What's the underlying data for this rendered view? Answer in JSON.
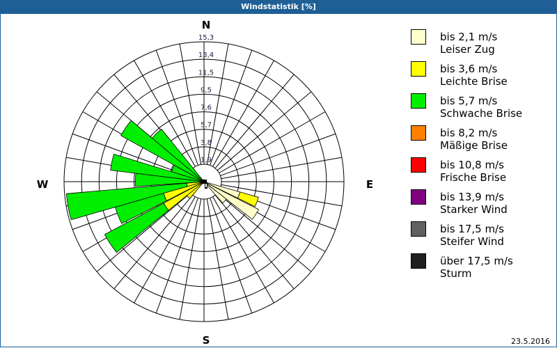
{
  "header": {
    "title": "Windstatistik [%]"
  },
  "footer": {
    "date": "23.5.2016"
  },
  "compass": {
    "north": "N",
    "east": "E",
    "south": "S",
    "west": "W"
  },
  "legend": [
    {
      "speed": "bis 2,1 m/s",
      "name": "Leiser Zug",
      "color": "#ffffcc"
    },
    {
      "speed": "bis 3,6 m/s",
      "name": "Leichte Brise",
      "color": "#ffff00"
    },
    {
      "speed": "bis 5,7 m/s",
      "name": "Schwache Brise",
      "color": "#00ee00"
    },
    {
      "speed": "bis 8,2 m/s",
      "name": "Mäßige Brise",
      "color": "#ff8000"
    },
    {
      "speed": "bis 10,8 m/s",
      "name": "Frische Brise",
      "color": "#ff0000"
    },
    {
      "speed": "bis 13,9 m/s",
      "name": "Starker Wind",
      "color": "#800080"
    },
    {
      "speed": "bis 17,5 m/s",
      "name": "Steifer Wind",
      "color": "#606060"
    },
    {
      "speed": "über 17,5 m/s",
      "name": "Sturm",
      "color": "#202020"
    }
  ],
  "chart_data": {
    "type": "polar-bar (wind rose)",
    "title": "Windstatistik [%]",
    "date": "23.5.2016",
    "radial_ticks": [
      "1,9",
      "3,8",
      "5,7",
      "7,6",
      "9,5",
      "11,5",
      "13,4",
      "15,3"
    ],
    "radial_max": 15.3,
    "directions_count": 36,
    "sector_width_deg": 10,
    "series_names": [
      "bis 2,1 m/s",
      "bis 3,6 m/s",
      "bis 5,7 m/s"
    ],
    "sectors": [
      {
        "from": 106,
        "to": 116,
        "stack": [
          {
            "cls": 0,
            "to": 4.1
          },
          {
            "cls": 1,
            "to": 6.2
          }
        ]
      },
      {
        "from": 117,
        "to": 128,
        "stack": [
          {
            "cls": 0,
            "to": 6.7
          }
        ]
      },
      {
        "from": 128,
        "to": 139,
        "stack": [
          {
            "cls": 0,
            "to": 3.1
          }
        ]
      },
      {
        "from": 220,
        "to": 231,
        "stack": [
          {
            "cls": 1,
            "to": 2.4
          }
        ]
      },
      {
        "from": 231,
        "to": 242,
        "stack": [
          {
            "cls": 1,
            "to": 5.0
          },
          {
            "cls": 2,
            "to": 12.3
          }
        ]
      },
      {
        "from": 243,
        "to": 254,
        "stack": [
          {
            "cls": 1,
            "to": 4.6
          },
          {
            "cls": 2,
            "to": 10.1
          }
        ]
      },
      {
        "from": 254,
        "to": 265,
        "stack": [
          {
            "cls": 1,
            "to": 1.9
          },
          {
            "cls": 2,
            "to": 15.1
          }
        ]
      },
      {
        "from": 266,
        "to": 277,
        "stack": [
          {
            "cls": 2,
            "to": 7.5
          }
        ]
      },
      {
        "from": 277,
        "to": 287,
        "stack": [
          {
            "cls": 2,
            "to": 10.3
          }
        ]
      },
      {
        "from": 287,
        "to": 299,
        "stack": [
          {
            "cls": 2,
            "to": 3.7
          }
        ]
      },
      {
        "from": 299,
        "to": 310,
        "stack": [
          {
            "cls": 2,
            "to": 10.4
          }
        ]
      },
      {
        "from": 310,
        "to": 321,
        "stack": [
          {
            "cls": 2,
            "to": 7.4
          }
        ]
      }
    ]
  }
}
